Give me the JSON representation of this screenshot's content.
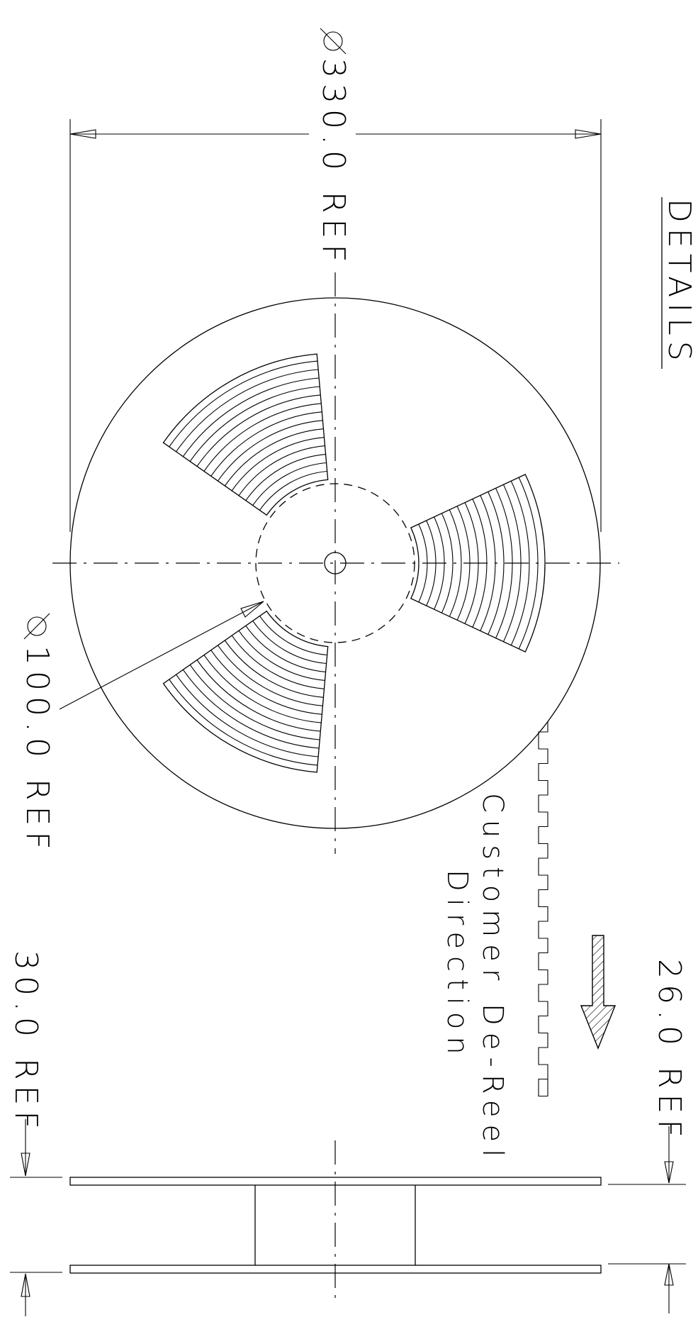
{
  "title": "DETAILS",
  "labels": {
    "reel_diameter": "330.0 REF",
    "hub_diameter": "100.0 REF",
    "overall_width": "30.0 REF",
    "tape_width": "26.0 REF",
    "direction_line1": "Customer De-Reel",
    "direction_line2": "Direction"
  },
  "symbols": {
    "diameter": "⌀"
  }
}
